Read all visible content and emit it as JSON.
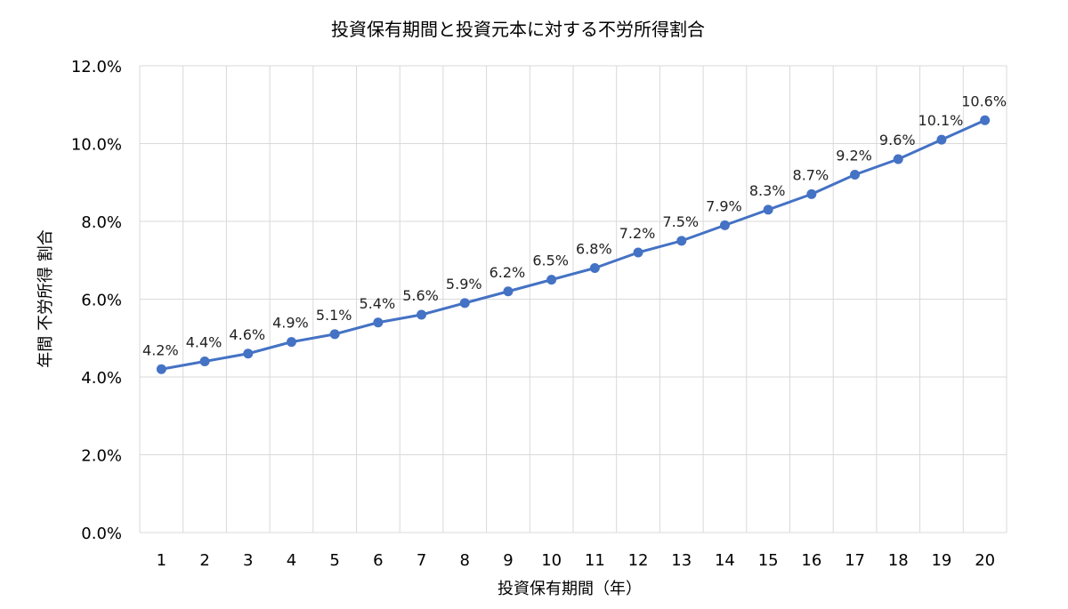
{
  "chart_data": {
    "type": "line",
    "title": "投資保有期間と投資元本に対する不労所得割合",
    "xlabel": "投資保有期間（年）",
    "ylabel": "年間 不労所得 割合",
    "categories": [
      "1",
      "2",
      "3",
      "4",
      "5",
      "6",
      "7",
      "8",
      "9",
      "10",
      "11",
      "12",
      "13",
      "14",
      "15",
      "16",
      "17",
      "18",
      "19",
      "20"
    ],
    "values": [
      4.2,
      4.4,
      4.6,
      4.9,
      5.1,
      5.4,
      5.6,
      5.9,
      6.2,
      6.5,
      6.8,
      7.2,
      7.5,
      7.9,
      8.3,
      8.7,
      9.2,
      9.6,
      10.1,
      10.6
    ],
    "data_labels": [
      "4.2%",
      "4.4%",
      "4.6%",
      "4.9%",
      "5.1%",
      "5.4%",
      "5.6%",
      "5.9%",
      "6.2%",
      "6.5%",
      "6.8%",
      "7.2%",
      "7.5%",
      "7.9%",
      "8.3%",
      "8.7%",
      "9.2%",
      "9.6%",
      "10.1%",
      "10.6%"
    ],
    "ylim": [
      0,
      12
    ],
    "yticks": [
      "0.0%",
      "2.0%",
      "4.0%",
      "6.0%",
      "8.0%",
      "10.0%",
      "12.0%"
    ],
    "grid": true,
    "markers": true,
    "legend": "none",
    "colors": {
      "line": "#4472C4",
      "grid": "#D9D9D9"
    }
  }
}
